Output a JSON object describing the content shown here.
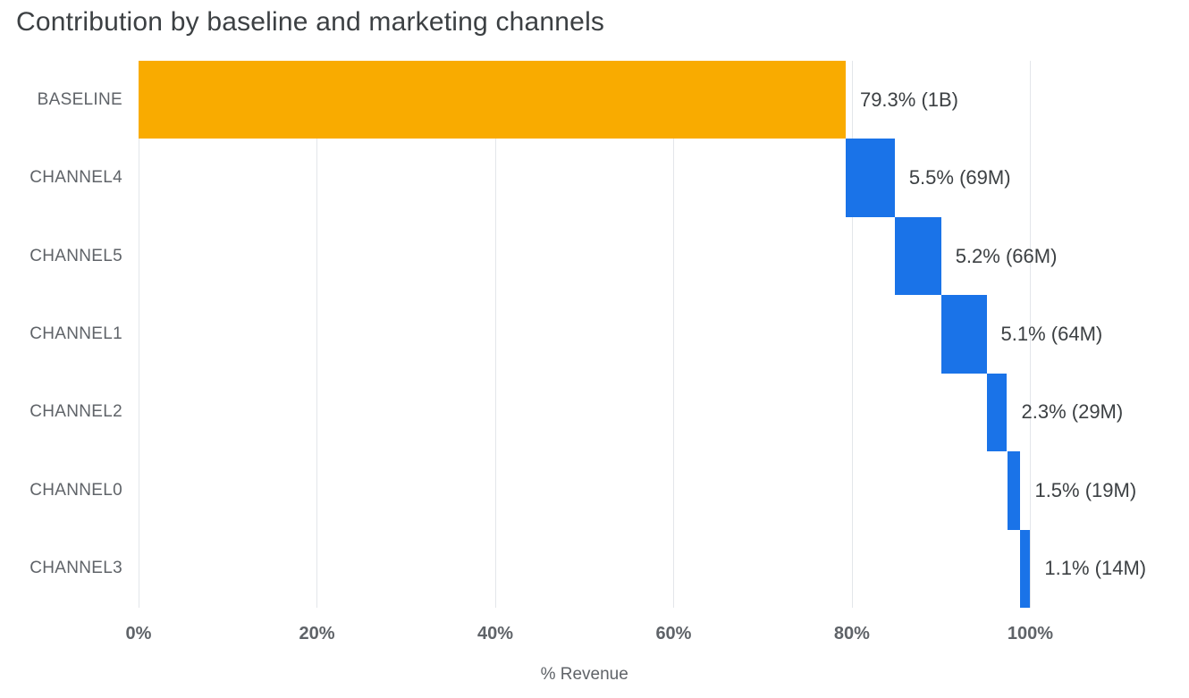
{
  "chart_data": {
    "type": "bar",
    "variant": "horizontal-waterfall",
    "title": "Contribution by baseline and marketing channels",
    "xlabel": "% Revenue",
    "ylabel": "",
    "xlim": [
      0,
      117
    ],
    "grid": "vertical",
    "legend": "none",
    "x_ticks": [
      {
        "value": 0,
        "label": "0%"
      },
      {
        "value": 20,
        "label": "20%"
      },
      {
        "value": 40,
        "label": "40%"
      },
      {
        "value": 60,
        "label": "60%"
      },
      {
        "value": 80,
        "label": "80%"
      },
      {
        "value": 100,
        "label": "100%"
      }
    ],
    "colors": {
      "baseline": "#F9AB00",
      "channel": "#1A73E8",
      "title_text": "#3C4043",
      "axis_text": "#5F6368",
      "gridline": "#E3E6EA"
    },
    "bars": [
      {
        "category": "BASELINE",
        "start": 0,
        "value": 79.3,
        "end": 79.3,
        "label": "79.3% (1B)",
        "color_key": "baseline"
      },
      {
        "category": "CHANNEL4",
        "start": 79.3,
        "value": 5.5,
        "end": 84.8,
        "label": "5.5% (69M)",
        "color_key": "channel"
      },
      {
        "category": "CHANNEL5",
        "start": 84.8,
        "value": 5.2,
        "end": 90.0,
        "label": "5.2% (66M)",
        "color_key": "channel"
      },
      {
        "category": "CHANNEL1",
        "start": 90.0,
        "value": 5.1,
        "end": 95.1,
        "label": "5.1% (64M)",
        "color_key": "channel"
      },
      {
        "category": "CHANNEL2",
        "start": 95.1,
        "value": 2.3,
        "end": 97.4,
        "label": "2.3% (29M)",
        "color_key": "channel"
      },
      {
        "category": "CHANNEL0",
        "start": 97.4,
        "value": 1.5,
        "end": 98.9,
        "label": "1.5% (19M)",
        "color_key": "channel"
      },
      {
        "category": "CHANNEL3",
        "start": 98.9,
        "value": 1.1,
        "end": 100.0,
        "label": "1.1% (14M)",
        "color_key": "channel"
      }
    ]
  }
}
